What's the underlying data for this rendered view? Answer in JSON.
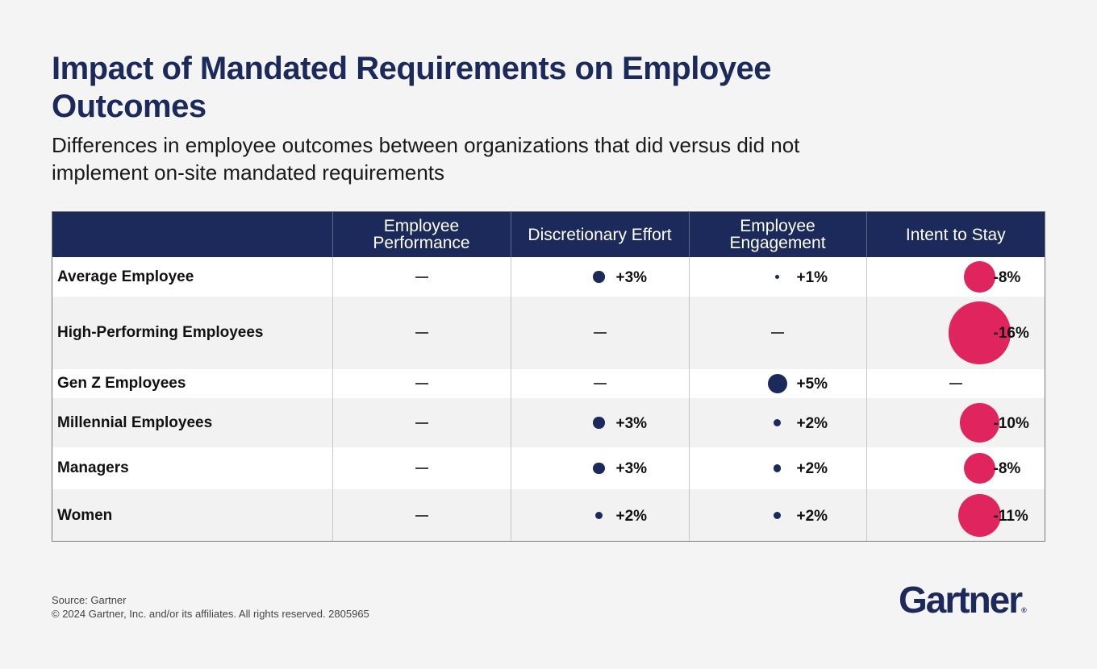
{
  "title": "Impact of Mandated Requirements on Employee Outcomes",
  "subtitle": "Differences in employee outcomes between organizations that did versus did not implement on-site mandated requirements",
  "source": "Source: Gartner",
  "copyright": "© 2024 Gartner, Inc. and/or its affiliates. All rights reserved. 2805965",
  "logo": "Gartner",
  "logo_mark": "®",
  "colors": {
    "header_bg": "#1b2a5a",
    "positive": "#1b2a5a",
    "negative": "#e0245e",
    "neutral": "#444444"
  },
  "chart_data": {
    "type": "table",
    "columns": [
      "Employee Performance",
      "Discretionary Effort",
      "Employee Engagement",
      "Intent to Stay"
    ],
    "rows": [
      {
        "label": "Average Employee",
        "values": [
          null,
          3,
          1,
          -8
        ],
        "labels": [
          "—",
          "+3%",
          "+1%",
          "-8%"
        ]
      },
      {
        "label": "High-Performing Employees",
        "values": [
          null,
          null,
          null,
          -16
        ],
        "labels": [
          "—",
          "—",
          "—",
          "-16%"
        ]
      },
      {
        "label": "Gen Z Employees",
        "values": [
          null,
          null,
          5,
          null
        ],
        "labels": [
          "—",
          "—",
          "+5%",
          "—"
        ]
      },
      {
        "label": "Millennial Employees",
        "values": [
          null,
          3,
          2,
          -10
        ],
        "labels": [
          "—",
          "+3%",
          "+2%",
          "-10%"
        ]
      },
      {
        "label": "Managers",
        "values": [
          null,
          3,
          2,
          -8
        ],
        "labels": [
          "—",
          "+3%",
          "+2%",
          "-8%"
        ]
      },
      {
        "label": "Women",
        "values": [
          null,
          2,
          2,
          -11
        ],
        "labels": [
          "—",
          "+2%",
          "+2%",
          "-11%"
        ]
      }
    ],
    "unit": "%"
  }
}
